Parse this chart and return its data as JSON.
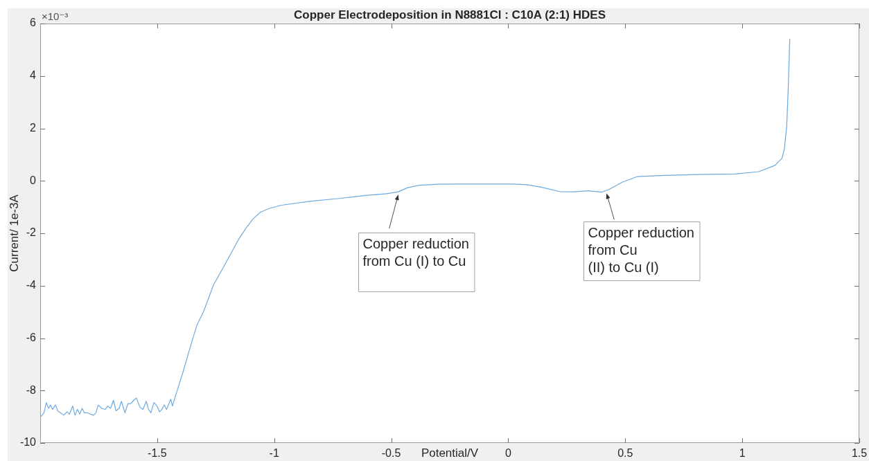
{
  "chart_data": {
    "type": "line",
    "title": "Copper Electrodeposition in N8881Cl : C10A (2:1) HDES",
    "xlabel": "Potential/V",
    "ylabel": "Current/ 1e-3A",
    "annotations": [
      "×10⁻³",
      {
        "text": "Copper reduction\nfrom Cu (I) to Cu",
        "x": -0.47,
        "y": -0.47
      },
      {
        "text": "Copper reduction\nfrom Cu\n(II) to Cu (I)",
        "x": 0.42,
        "y": -0.42
      }
    ],
    "x": [
      -1.996,
      -1.984,
      -1.974,
      -1.964,
      -1.956,
      -1.947,
      -1.935,
      -1.925,
      -1.913,
      -1.9,
      -1.885,
      -1.875,
      -1.861,
      -1.851,
      -1.841,
      -1.831,
      -1.821,
      -1.811,
      -1.798,
      -1.784,
      -1.772,
      -1.762,
      -1.752,
      -1.737,
      -1.722,
      -1.712,
      -1.699,
      -1.687,
      -1.676,
      -1.663,
      -1.653,
      -1.638,
      -1.625,
      -1.613,
      -1.6,
      -1.589,
      -1.574,
      -1.561,
      -1.547,
      -1.537,
      -1.527,
      -1.514,
      -1.501,
      -1.49,
      -1.48,
      -1.47,
      -1.46,
      -1.442,
      -1.435,
      -1.42,
      -1.39,
      -1.35,
      -1.33,
      -1.3,
      -1.26,
      -1.21,
      -1.15,
      -1.12,
      -1.09,
      -1.06,
      -1.02,
      -0.97,
      -0.85,
      -0.73,
      -0.61,
      -0.52,
      -0.47,
      -0.43,
      -0.38,
      -0.3,
      -0.22,
      0.02,
      0.08,
      0.14,
      0.22,
      0.28,
      0.34,
      0.4,
      0.43,
      0.49,
      0.55,
      0.67,
      0.85,
      0.97,
      1.07,
      1.14,
      1.17,
      1.18,
      1.19,
      1.197,
      1.203
    ],
    "series": [
      {
        "color": "#6aaae0",
        "values": [
          -8.99,
          -8.85,
          -8.46,
          -8.68,
          -8.55,
          -8.72,
          -8.55,
          -8.77,
          -8.85,
          -8.94,
          -8.81,
          -8.9,
          -8.59,
          -8.94,
          -8.72,
          -8.9,
          -8.68,
          -8.85,
          -8.85,
          -8.9,
          -8.94,
          -8.85,
          -8.55,
          -8.68,
          -8.72,
          -8.59,
          -8.68,
          -8.37,
          -8.77,
          -8.68,
          -8.41,
          -8.85,
          -8.5,
          -8.5,
          -8.37,
          -8.28,
          -8.63,
          -8.72,
          -8.41,
          -8.72,
          -8.85,
          -8.46,
          -8.59,
          -8.81,
          -8.72,
          -8.55,
          -8.72,
          -8.33,
          -8.59,
          -8.15,
          -7.3,
          -6.07,
          -5.5,
          -4.95,
          -3.98,
          -3.18,
          -2.2,
          -1.8,
          -1.45,
          -1.2,
          -1.05,
          -0.93,
          -0.78,
          -0.68,
          -0.56,
          -0.49,
          -0.42,
          -0.26,
          -0.17,
          -0.13,
          -0.12,
          -0.12,
          -0.15,
          -0.24,
          -0.41,
          -0.42,
          -0.38,
          -0.43,
          -0.33,
          -0.04,
          0.16,
          0.21,
          0.25,
          0.26,
          0.35,
          0.59,
          0.86,
          1.23,
          2.09,
          3.7,
          5.41
        ]
      }
    ],
    "xlim": [
      -2,
      1.5
    ],
    "xticks": [
      -1.5,
      -1,
      -0.5,
      0,
      0.5,
      1,
      1.5
    ],
    "ylim": [
      -10,
      6
    ],
    "yticks": [
      -10,
      -8,
      -6,
      -4,
      -2,
      0,
      2,
      4,
      6
    ],
    "grid": false,
    "legend": false,
    "marker": "none",
    "line_style": "solid"
  }
}
